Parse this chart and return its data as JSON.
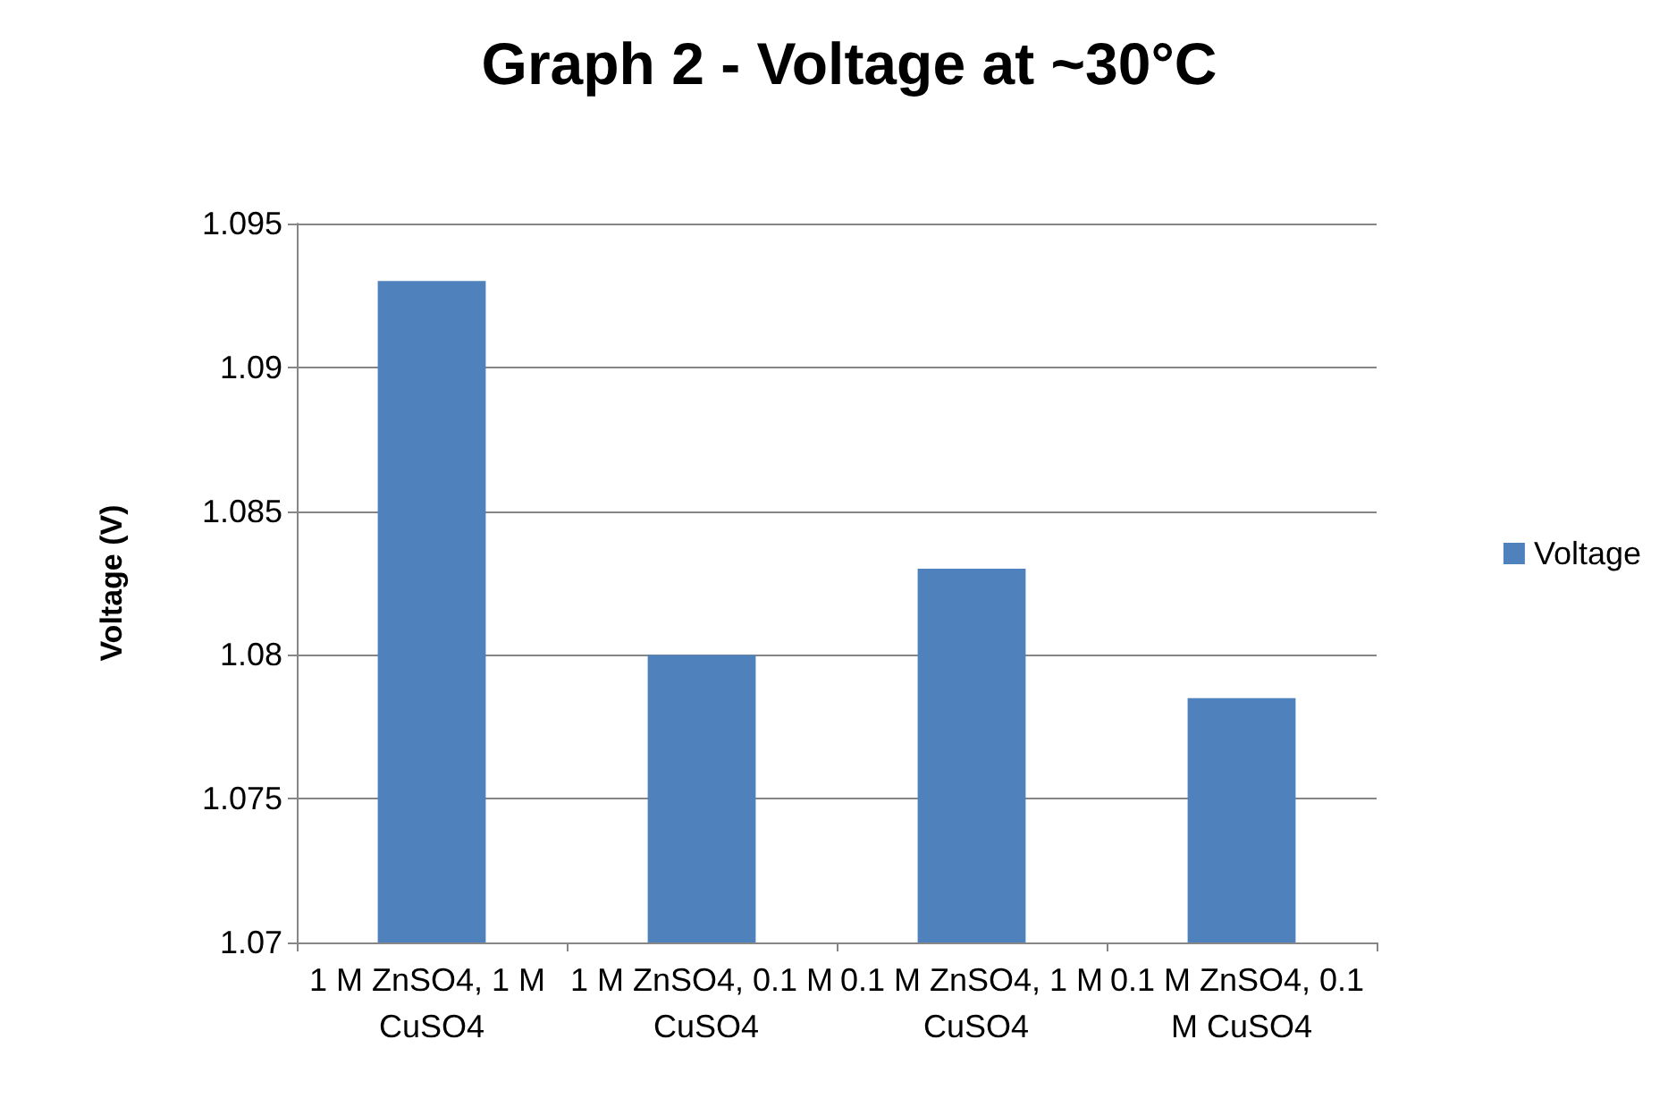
{
  "chart_data": {
    "type": "bar",
    "title": "Graph 2 - Voltage at ~30°C",
    "ylabel": "Voltage (V)",
    "categories": [
      "1 M ZnSO4, 1 M CuSO4",
      "1 M ZnSO4, 0.1 M CuSO4",
      "0.1 M ZnSO4, 1 M CuSO4",
      "0.1 M ZnSO4, 0.1 M CuSO4"
    ],
    "series": [
      {
        "name": "Voltage",
        "color": "#4f81bd",
        "values": [
          1.093,
          1.08,
          1.083,
          1.0785
        ]
      }
    ],
    "ylim": [
      1.07,
      1.095
    ],
    "yticks": [
      1.07,
      1.075,
      1.08,
      1.085,
      1.09,
      1.095
    ],
    "grid": "y",
    "legend": "right"
  }
}
